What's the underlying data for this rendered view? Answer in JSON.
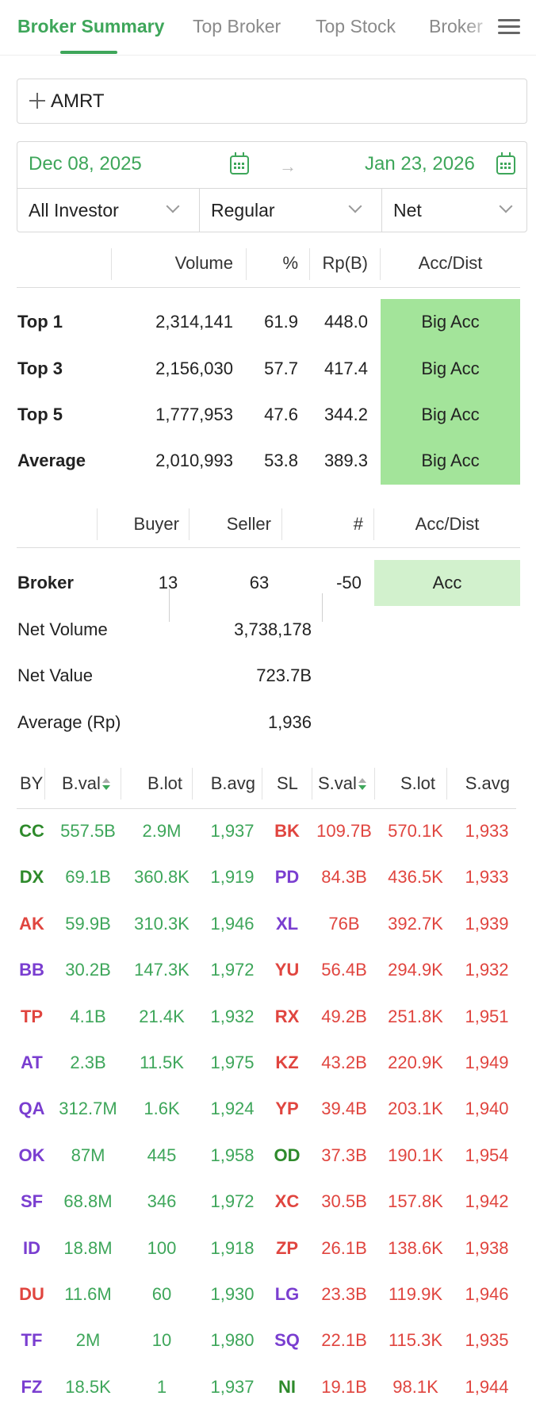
{
  "tabs": [
    {
      "label": "Broker Summary",
      "active": true
    },
    {
      "label": "Top Broker",
      "active": false
    },
    {
      "label": "Top Stock",
      "active": false
    },
    {
      "label": "Broker",
      "active": false
    }
  ],
  "stock": {
    "value": "AMRT"
  },
  "dates": {
    "from": "Dec 08, 2025",
    "to": "Jan 23, 2026"
  },
  "filters": {
    "investor": "All Investor",
    "market": "Regular",
    "mode": "Net"
  },
  "summary": {
    "headers": {
      "volume": "Volume",
      "pct": "%",
      "rp": "Rp(B)",
      "accdist": "Acc/Dist"
    },
    "rows": [
      {
        "label": "Top 1",
        "volume": "2,314,141",
        "pct": "61.9",
        "rp": "448.0",
        "accdist": "Big Acc"
      },
      {
        "label": "Top 3",
        "volume": "2,156,030",
        "pct": "57.7",
        "rp": "417.4",
        "accdist": "Big Acc"
      },
      {
        "label": "Top 5",
        "volume": "1,777,953",
        "pct": "47.6",
        "rp": "344.2",
        "accdist": "Big Acc"
      },
      {
        "label": "Average",
        "volume": "2,010,993",
        "pct": "53.8",
        "rp": "389.3",
        "accdist": "Big Acc"
      }
    ]
  },
  "broker_stats": {
    "headers": {
      "buyer": "Buyer",
      "seller": "Seller",
      "count": "#",
      "accdist": "Acc/Dist"
    },
    "broker": {
      "label": "Broker",
      "buyer": "13",
      "seller": "63",
      "count": "-50",
      "accdist": "Acc"
    },
    "net_volume": {
      "label": "Net Volume",
      "value": "3,738,178"
    },
    "net_value": {
      "label": "Net Value",
      "value": "723.7B"
    },
    "average": {
      "label": "Average (Rp)",
      "value": "1,936"
    }
  },
  "list": {
    "headers": {
      "by": "BY",
      "bval": "B.val",
      "blot": "B.lot",
      "bavg": "B.avg",
      "sl": "SL",
      "sval": "S.val",
      "slot": "S.lot",
      "savg": "S.avg"
    },
    "colors": {
      "green": "#3ea65a",
      "red": "#e0453f",
      "purple": "#7a3ed0",
      "dark_green": "#2e8a2b"
    },
    "rows": [
      {
        "by": "CC",
        "by_color": "dgreen",
        "bval": "557.5B",
        "blot": "2.9M",
        "bavg": "1,937",
        "sl": "BK",
        "sl_color": "red",
        "sval": "109.7B",
        "slot": "570.1K",
        "savg": "1,933"
      },
      {
        "by": "DX",
        "by_color": "dgreen",
        "bval": "69.1B",
        "blot": "360.8K",
        "bavg": "1,919",
        "sl": "PD",
        "sl_color": "purple",
        "sval": "84.3B",
        "slot": "436.5K",
        "savg": "1,933"
      },
      {
        "by": "AK",
        "by_color": "red",
        "bval": "59.9B",
        "blot": "310.3K",
        "bavg": "1,946",
        "sl": "XL",
        "sl_color": "purple",
        "sval": "76B",
        "slot": "392.7K",
        "savg": "1,939"
      },
      {
        "by": "BB",
        "by_color": "purple",
        "bval": "30.2B",
        "blot": "147.3K",
        "bavg": "1,972",
        "sl": "YU",
        "sl_color": "red",
        "sval": "56.4B",
        "slot": "294.9K",
        "savg": "1,932"
      },
      {
        "by": "TP",
        "by_color": "red",
        "bval": "4.1B",
        "blot": "21.4K",
        "bavg": "1,932",
        "sl": "RX",
        "sl_color": "red",
        "sval": "49.2B",
        "slot": "251.8K",
        "savg": "1,951"
      },
      {
        "by": "AT",
        "by_color": "purple",
        "bval": "2.3B",
        "blot": "11.5K",
        "bavg": "1,975",
        "sl": "KZ",
        "sl_color": "red",
        "sval": "43.2B",
        "slot": "220.9K",
        "savg": "1,949"
      },
      {
        "by": "QA",
        "by_color": "purple",
        "bval": "312.7M",
        "blot": "1.6K",
        "bavg": "1,924",
        "sl": "YP",
        "sl_color": "red",
        "sval": "39.4B",
        "slot": "203.1K",
        "savg": "1,940"
      },
      {
        "by": "OK",
        "by_color": "purple",
        "bval": "87M",
        "blot": "445",
        "bavg": "1,958",
        "sl": "OD",
        "sl_color": "dgreen",
        "sval": "37.3B",
        "slot": "190.1K",
        "savg": "1,954"
      },
      {
        "by": "SF",
        "by_color": "purple",
        "bval": "68.8M",
        "blot": "346",
        "bavg": "1,972",
        "sl": "XC",
        "sl_color": "red",
        "sval": "30.5B",
        "slot": "157.8K",
        "savg": "1,942"
      },
      {
        "by": "ID",
        "by_color": "purple",
        "bval": "18.8M",
        "blot": "100",
        "bavg": "1,918",
        "sl": "ZP",
        "sl_color": "red",
        "sval": "26.1B",
        "slot": "138.6K",
        "savg": "1,938"
      },
      {
        "by": "DU",
        "by_color": "red",
        "bval": "11.6M",
        "blot": "60",
        "bavg": "1,930",
        "sl": "LG",
        "sl_color": "purple",
        "sval": "23.3B",
        "slot": "119.9K",
        "savg": "1,946"
      },
      {
        "by": "TF",
        "by_color": "purple",
        "bval": "2M",
        "blot": "10",
        "bavg": "1,980",
        "sl": "SQ",
        "sl_color": "purple",
        "sval": "22.1B",
        "slot": "115.3K",
        "savg": "1,935"
      },
      {
        "by": "FZ",
        "by_color": "purple",
        "bval": "18.5K",
        "blot": "1",
        "bavg": "1,937",
        "sl": "NI",
        "sl_color": "dgreen",
        "sval": "19.1B",
        "slot": "98.1K",
        "savg": "1,944"
      }
    ]
  }
}
